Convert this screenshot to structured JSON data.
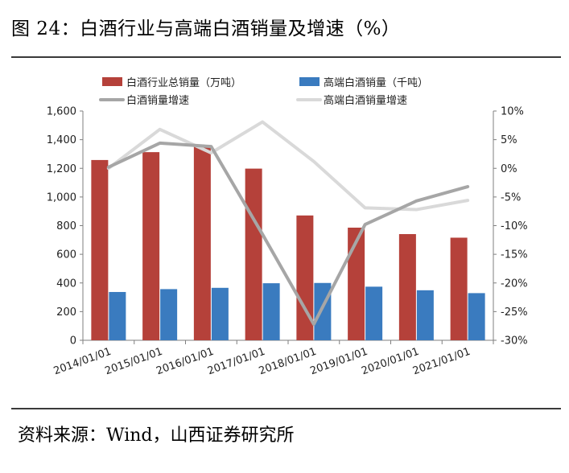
{
  "figure": {
    "title": "图 24：白酒行业与高端白酒销量及增速（%）",
    "source": "资料来源：Wind，山西证券研究所"
  },
  "chart_data": {
    "type": "bar",
    "categories": [
      "2014/01/01",
      "2015/01/01",
      "2016/01/01",
      "2017/01/01",
      "2018/01/01",
      "2019/01/01",
      "2020/01/01",
      "2021/01/01"
    ],
    "series": [
      {
        "name": "白酒行业总销量（万吨）",
        "kind": "bar",
        "axis": "left",
        "color": "#b5413a",
        "values": [
          1258,
          1313,
          1358,
          1198,
          871,
          786,
          741,
          716
        ]
      },
      {
        "name": "高端白酒销量（千吨）",
        "kind": "bar",
        "axis": "left",
        "color": "#3a7bbf",
        "values": [
          337,
          357,
          366,
          398,
          400,
          374,
          349,
          329
        ]
      },
      {
        "name": "白酒销量增速",
        "kind": "line",
        "axis": "right",
        "color": "#a6a6a6",
        "values": [
          0.2,
          4.4,
          3.8,
          -11.5,
          -27.2,
          -9.8,
          -5.7,
          -3.2
        ]
      },
      {
        "name": "高端白酒销量增速",
        "kind": "line",
        "axis": "right",
        "color": "#d9d9d9",
        "values": [
          0.0,
          6.8,
          2.7,
          8.1,
          1.2,
          -6.9,
          -7.2,
          -5.6
        ]
      }
    ],
    "left_axis": {
      "min": 0,
      "max": 1600,
      "step": 200,
      "tick_labels": [
        "0",
        "200",
        "400",
        "600",
        "800",
        "1,000",
        "1,200",
        "1,400",
        "1,600"
      ]
    },
    "right_axis": {
      "min": -30,
      "max": 10,
      "step": 5,
      "tick_labels": [
        "-30%",
        "-25%",
        "-20%",
        "-15%",
        "-10%",
        "-5%",
        "0%",
        "5%",
        "10%"
      ]
    },
    "grid": false,
    "legend_position": "top"
  }
}
